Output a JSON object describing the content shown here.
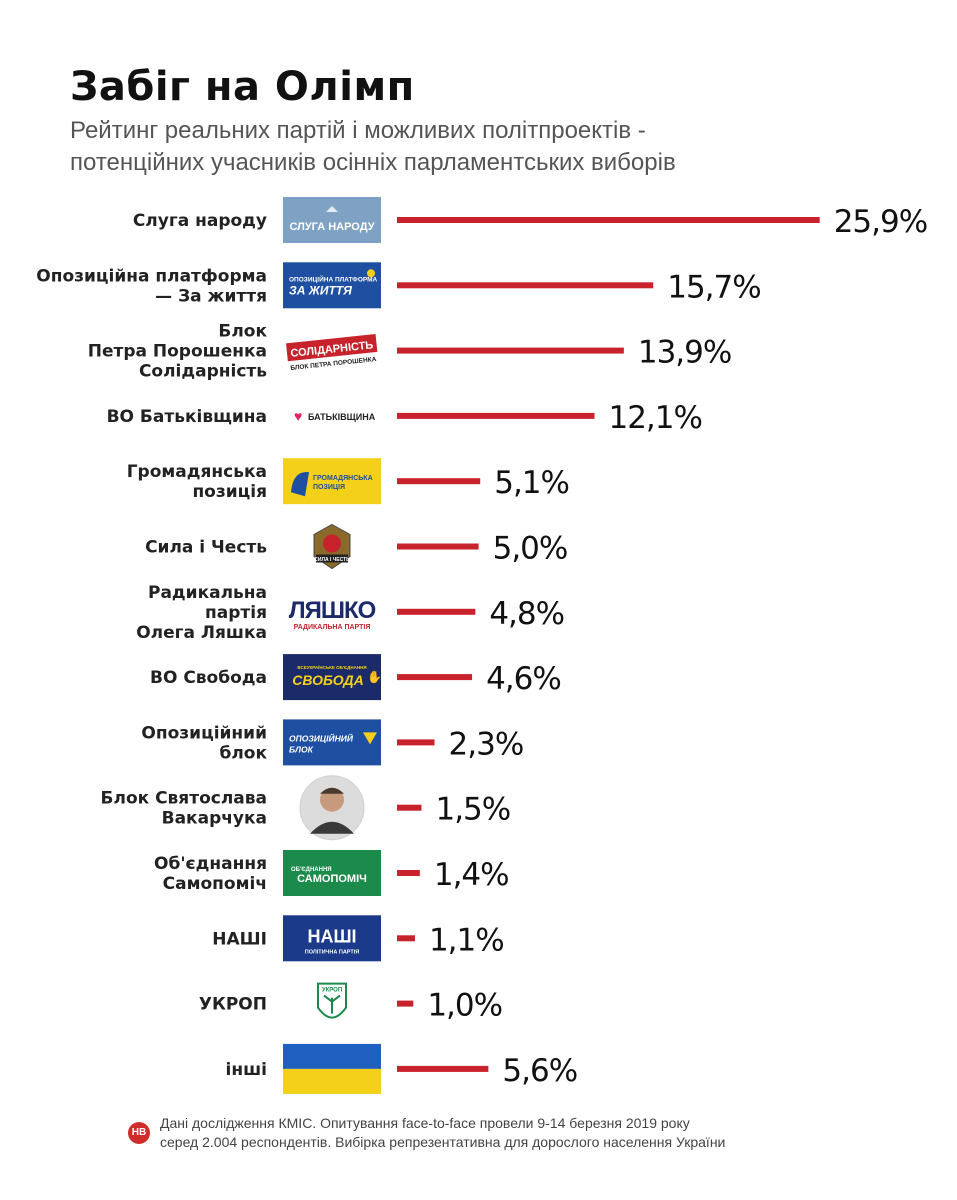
{
  "header": {
    "title": "Забіг на Олімп",
    "subtitle_line1": "Рейтинг реальних партій і можливих політпроектів -",
    "subtitle_line2": "потенційних учасників осінніх парламентських виборів"
  },
  "chart_data": {
    "type": "bar",
    "orientation": "horizontal",
    "title": "Забіг на Олімп",
    "subtitle": "Рейтинг реальних партій і можливих політпроектів - потенційних учасників осінніх парламентських виборів",
    "unit": "%",
    "bar_color": "#c8232c",
    "categories": [
      "Слуга народу",
      "Опозиційна платформа — За життя",
      "Блок Петра Порошенка Солідарність",
      "ВО Батьківщина",
      "Громадянська позиція",
      "Сила і Честь",
      "Радикальна партія Олега Ляшка",
      "ВО Свобода",
      "Опозиційний блок",
      "Блок Святослава Вакарчука",
      "Об'єднання Самопоміч",
      "НАШІ",
      "УКРОП",
      "інші"
    ],
    "label_lines": [
      [
        "Слуга народу"
      ],
      [
        "Опозиційна платформа",
        "— За життя"
      ],
      [
        "Блок",
        "Петра Порошенка",
        "Солідарність"
      ],
      [
        "ВО Батьківщина"
      ],
      [
        "Громадянська",
        "позиція"
      ],
      [
        "Сила і Честь"
      ],
      [
        "Радикальна",
        "партія",
        "Олега Ляшка"
      ],
      [
        "ВО Свобода"
      ],
      [
        "Опозиційний",
        "блок"
      ],
      [
        "Блок Святослава",
        "Вакарчука"
      ],
      [
        "Об'єднання",
        "Самопоміч"
      ],
      [
        "НАШІ"
      ],
      [
        "УКРОП"
      ],
      [
        "інші"
      ]
    ],
    "values": [
      25.9,
      15.7,
      13.9,
      12.1,
      5.1,
      5.0,
      4.8,
      4.6,
      2.3,
      1.5,
      1.4,
      1.1,
      1.0,
      5.6
    ],
    "value_labels": [
      "25,9%",
      "15,7%",
      "13,9%",
      "12,1%",
      "5,1%",
      "5,0%",
      "4,8%",
      "4,6%",
      "2,3%",
      "1,5%",
      "1,4%",
      "1,1%",
      "1,0%",
      "5,6%"
    ],
    "logos": [
      {
        "icon": "sluha-narodu-logo",
        "text": "СЛУГА НАРОДУ",
        "bg": "#7fa1c4",
        "fg": "#ffffff"
      },
      {
        "icon": "opzzh-logo",
        "text1": "ОПОЗИЦІЙНА ПЛАТФОРМА",
        "text2": "ЗА ЖИТТЯ",
        "bg": "#1f4fa0",
        "fg": "#ffffff"
      },
      {
        "icon": "solidarnist-logo",
        "text1": "СОЛІДАРНІСТЬ",
        "text2": "БЛОК ПЕТРА ПОРОШЕНКА",
        "bg": "#c8232c",
        "fg": "#ffffff"
      },
      {
        "icon": "batkivshchyna-logo",
        "text": "БАТЬКІВЩИНА",
        "bg": "#ffffff",
        "fg": "#222222"
      },
      {
        "icon": "hromadianska-pozytsiia-logo",
        "text1": "ГРОМАДЯНСЬКА",
        "text2": "ПОЗИЦІЯ",
        "bg": "#f5d01a",
        "fg": "#1f4fa0"
      },
      {
        "icon": "syla-i-chest-logo",
        "text": "СИЛА І ЧЕСТЬ",
        "bg": "#ffffff",
        "fg": "#333333"
      },
      {
        "icon": "liashko-logo",
        "text1": "ЛЯШКО",
        "text2": "РАДИКАЛЬНА ПАРТІЯ",
        "bg": "#ffffff",
        "fg": "#1b2b6a"
      },
      {
        "icon": "svoboda-logo",
        "text1": "СВОБОДА",
        "text2": "ВСЕУКРАЇНСЬКЕ ОБ'ЄДНАННЯ",
        "bg": "#1b2b6a",
        "fg": "#f5d01a"
      },
      {
        "icon": "opozytsiinyi-blok-logo",
        "text1": "ОПОЗИЦІЙНИЙ",
        "text2": "БЛОК",
        "bg": "#1f4fa0",
        "fg": "#ffffff"
      },
      {
        "icon": "vakarchuk-photo",
        "bg": "#e9e9e9"
      },
      {
        "icon": "samopomich-logo",
        "text1": "ОБ'ЄДНАННЯ",
        "text2": "САМОПОМІЧ",
        "bg": "#1b8a4a",
        "fg": "#ffffff"
      },
      {
        "icon": "nashi-logo",
        "text1": "НАШІ",
        "text2": "ПОЛІТИЧНА ПАРТІЯ",
        "bg": "#1b3a8a",
        "fg": "#ffffff"
      },
      {
        "icon": "ukrop-logo",
        "text": "УКРОП",
        "bg": "#ffffff",
        "fg": "#1b8a4a"
      },
      {
        "icon": "ukraine-flag",
        "bg": "#1f5fbf",
        "bg2": "#f5d01a"
      }
    ]
  },
  "footer": {
    "source_badge": "НВ",
    "line1": "Дані дослідження КМІС. Опитування face-to-face провели 9-14 березня 2019 року",
    "line2": "серед 2.004 респондентів. Вибірка репрезентативна для дорослого населення України"
  }
}
